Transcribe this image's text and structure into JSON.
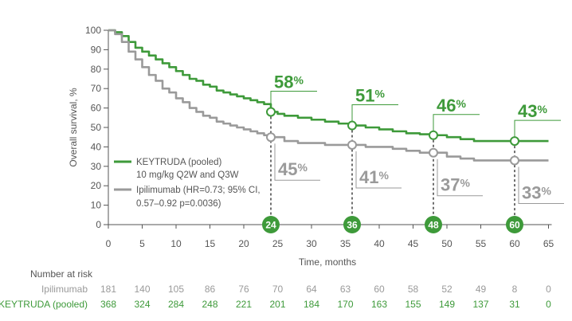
{
  "colors": {
    "keytruda": "#3e9a3a",
    "ipilimumab": "#9a9a9a",
    "axis": "#555555",
    "text": "#555555"
  },
  "chart_data": {
    "type": "line",
    "xlabel": "Time, months",
    "ylabel": "Overall survival, %",
    "xlim": [
      0,
      65
    ],
    "ylim": [
      0,
      100
    ],
    "xticks": [
      "0",
      "5",
      "10",
      "15",
      "20",
      "25",
      "30",
      "35",
      "40",
      "45",
      "50",
      "55",
      "60",
      "65"
    ],
    "yticks": [
      "0",
      "10",
      "20",
      "30",
      "40",
      "50",
      "60",
      "70",
      "80",
      "90",
      "100"
    ],
    "grid": false,
    "series": [
      {
        "name": "KEYTRUDA (pooled)",
        "legend_line2": "10 mg/kg Q2W and Q3W",
        "color": "#3e9a3a",
        "points": [
          [
            0,
            100
          ],
          [
            1,
            99
          ],
          [
            2,
            97
          ],
          [
            3,
            94
          ],
          [
            4,
            91
          ],
          [
            5,
            89
          ],
          [
            6,
            87
          ],
          [
            7,
            85
          ],
          [
            8,
            83
          ],
          [
            9,
            81
          ],
          [
            10,
            79
          ],
          [
            11,
            77
          ],
          [
            12,
            75
          ],
          [
            13,
            74
          ],
          [
            14,
            72
          ],
          [
            15,
            71
          ],
          [
            16,
            69
          ],
          [
            17,
            68
          ],
          [
            18,
            67
          ],
          [
            19,
            66
          ],
          [
            20,
            65
          ],
          [
            21,
            64
          ],
          [
            22,
            63
          ],
          [
            23,
            62
          ],
          [
            24,
            58
          ],
          [
            25,
            57
          ],
          [
            26,
            56
          ],
          [
            28,
            55
          ],
          [
            30,
            54
          ],
          [
            32,
            53
          ],
          [
            34,
            52
          ],
          [
            36,
            51
          ],
          [
            38,
            50
          ],
          [
            40,
            49
          ],
          [
            42,
            48
          ],
          [
            44,
            47
          ],
          [
            46,
            46.5
          ],
          [
            48,
            46
          ],
          [
            50,
            45
          ],
          [
            52,
            44
          ],
          [
            54,
            43
          ],
          [
            56,
            43
          ],
          [
            58,
            43
          ],
          [
            60,
            43
          ],
          [
            65,
            43
          ]
        ]
      },
      {
        "name": "Ipilimumab (HR=0.73; 95% CI,",
        "legend_line2": "0.57–0.92 p=0.0036)",
        "color": "#9a9a9a",
        "points": [
          [
            0,
            100
          ],
          [
            1,
            98
          ],
          [
            2,
            94
          ],
          [
            3,
            89
          ],
          [
            4,
            85
          ],
          [
            5,
            81
          ],
          [
            6,
            77
          ],
          [
            7,
            74
          ],
          [
            8,
            70
          ],
          [
            9,
            68
          ],
          [
            10,
            65
          ],
          [
            11,
            63
          ],
          [
            12,
            60
          ],
          [
            13,
            58
          ],
          [
            14,
            56
          ],
          [
            15,
            55
          ],
          [
            16,
            53
          ],
          [
            17,
            52
          ],
          [
            18,
            51
          ],
          [
            19,
            50
          ],
          [
            20,
            49
          ],
          [
            21,
            48
          ],
          [
            22,
            47
          ],
          [
            23,
            46
          ],
          [
            24,
            45
          ],
          [
            26,
            43
          ],
          [
            28,
            42
          ],
          [
            30,
            42
          ],
          [
            32,
            41
          ],
          [
            34,
            41
          ],
          [
            36,
            41
          ],
          [
            38,
            40
          ],
          [
            40,
            40
          ],
          [
            42,
            39
          ],
          [
            44,
            38
          ],
          [
            46,
            37
          ],
          [
            48,
            37
          ],
          [
            50,
            35
          ],
          [
            52,
            34
          ],
          [
            54,
            33
          ],
          [
            56,
            33
          ],
          [
            58,
            33
          ],
          [
            60,
            33
          ],
          [
            65,
            33
          ]
        ]
      }
    ],
    "timepoints": [
      24,
      36,
      48,
      60
    ],
    "timepoint_labels": [
      "24",
      "36",
      "48",
      "60"
    ],
    "annotations": {
      "keytruda": [
        {
          "month": 24,
          "value": 58,
          "number": "58",
          "unit": "%"
        },
        {
          "month": 36,
          "value": 51,
          "number": "51",
          "unit": "%"
        },
        {
          "month": 48,
          "value": 46,
          "number": "46",
          "unit": "%"
        },
        {
          "month": 60,
          "value": 43,
          "number": "43",
          "unit": "%"
        }
      ],
      "ipilimumab": [
        {
          "month": 24,
          "value": 45,
          "number": "45",
          "unit": "%"
        },
        {
          "month": 36,
          "value": 41,
          "number": "41",
          "unit": "%"
        },
        {
          "month": 48,
          "value": 37,
          "number": "37",
          "unit": "%"
        },
        {
          "month": 60,
          "value": 33,
          "number": "33",
          "unit": "%"
        }
      ]
    },
    "risk_table": {
      "title": "Number at risk",
      "rows": [
        {
          "label": "Ipilimumab",
          "color": "#9a9a9a",
          "values": [
            "181",
            "140",
            "105",
            "86",
            "76",
            "70",
            "64",
            "63",
            "60",
            "58",
            "52",
            "49",
            "8",
            "0"
          ]
        },
        {
          "label": "KEYTRUDA  (pooled)",
          "color": "#3e9a3a",
          "values": [
            "368",
            "324",
            "284",
            "248",
            "221",
            "201",
            "184",
            "170",
            "163",
            "155",
            "149",
            "137",
            "31",
            "0"
          ]
        }
      ]
    }
  }
}
